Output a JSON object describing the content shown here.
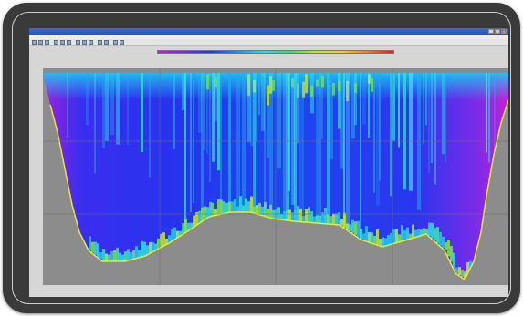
{
  "window": {
    "title": "",
    "controls": [
      "_",
      "□",
      "×"
    ]
  },
  "menu": [],
  "toolbar": {
    "icons": [
      "open-icon",
      "save-icon",
      "print-icon",
      "zoom-in-icon",
      "zoom-out-icon",
      "pan-icon",
      "cursor-icon",
      "measure-icon",
      "grid-icon",
      "export-icon",
      "settings-icon",
      "refresh-icon",
      "help-icon"
    ]
  },
  "plot": {
    "title": "",
    "x_axis_title": "",
    "y_axis_title": "",
    "colorscale": [
      "#c21bd0",
      "#6f2fe6",
      "#2730f0",
      "#1a8ff2",
      "#22e0e8",
      "#28e07a",
      "#bde82a",
      "#f2d21f",
      "#f27c1c",
      "#e01e2a"
    ],
    "background_color": "#8c8c8c",
    "profile_line_color": "#e8e83a"
  }
}
